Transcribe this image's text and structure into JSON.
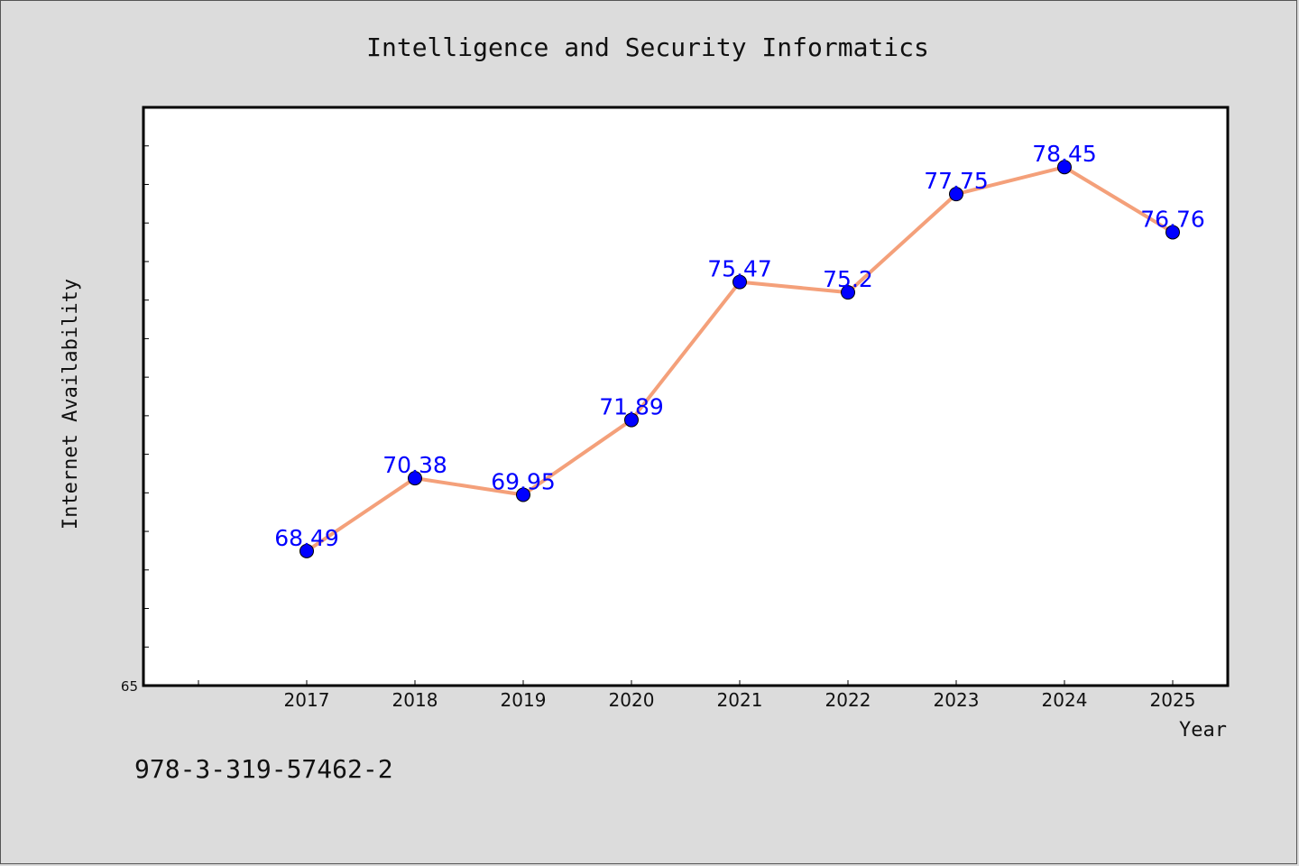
{
  "chart_data": {
    "type": "line",
    "title": "Intelligence and Security Informatics",
    "xlabel": "Year",
    "ylabel": "Internet Availability",
    "x": [
      "2017",
      "2018",
      "2019",
      "2020",
      "2021",
      "2022",
      "2023",
      "2024",
      "2025"
    ],
    "series": [
      {
        "values": [
          68.49,
          70.38,
          69.95,
          71.89,
          75.47,
          75.2,
          77.75,
          78.45,
          76.76
        ],
        "labels": [
          "68.49",
          "70.38",
          "69.95",
          "71.89",
          "75.47",
          "75.2",
          "77.75",
          "78.45",
          "76.76"
        ]
      }
    ],
    "ylim": [
      65,
      80
    ],
    "y_tick_labels": [
      "65"
    ],
    "grid": false,
    "line_color": "#f4a07a",
    "marker_color": "#0000ff"
  },
  "footer": {
    "isbn": "978-3-319-57462-2"
  }
}
